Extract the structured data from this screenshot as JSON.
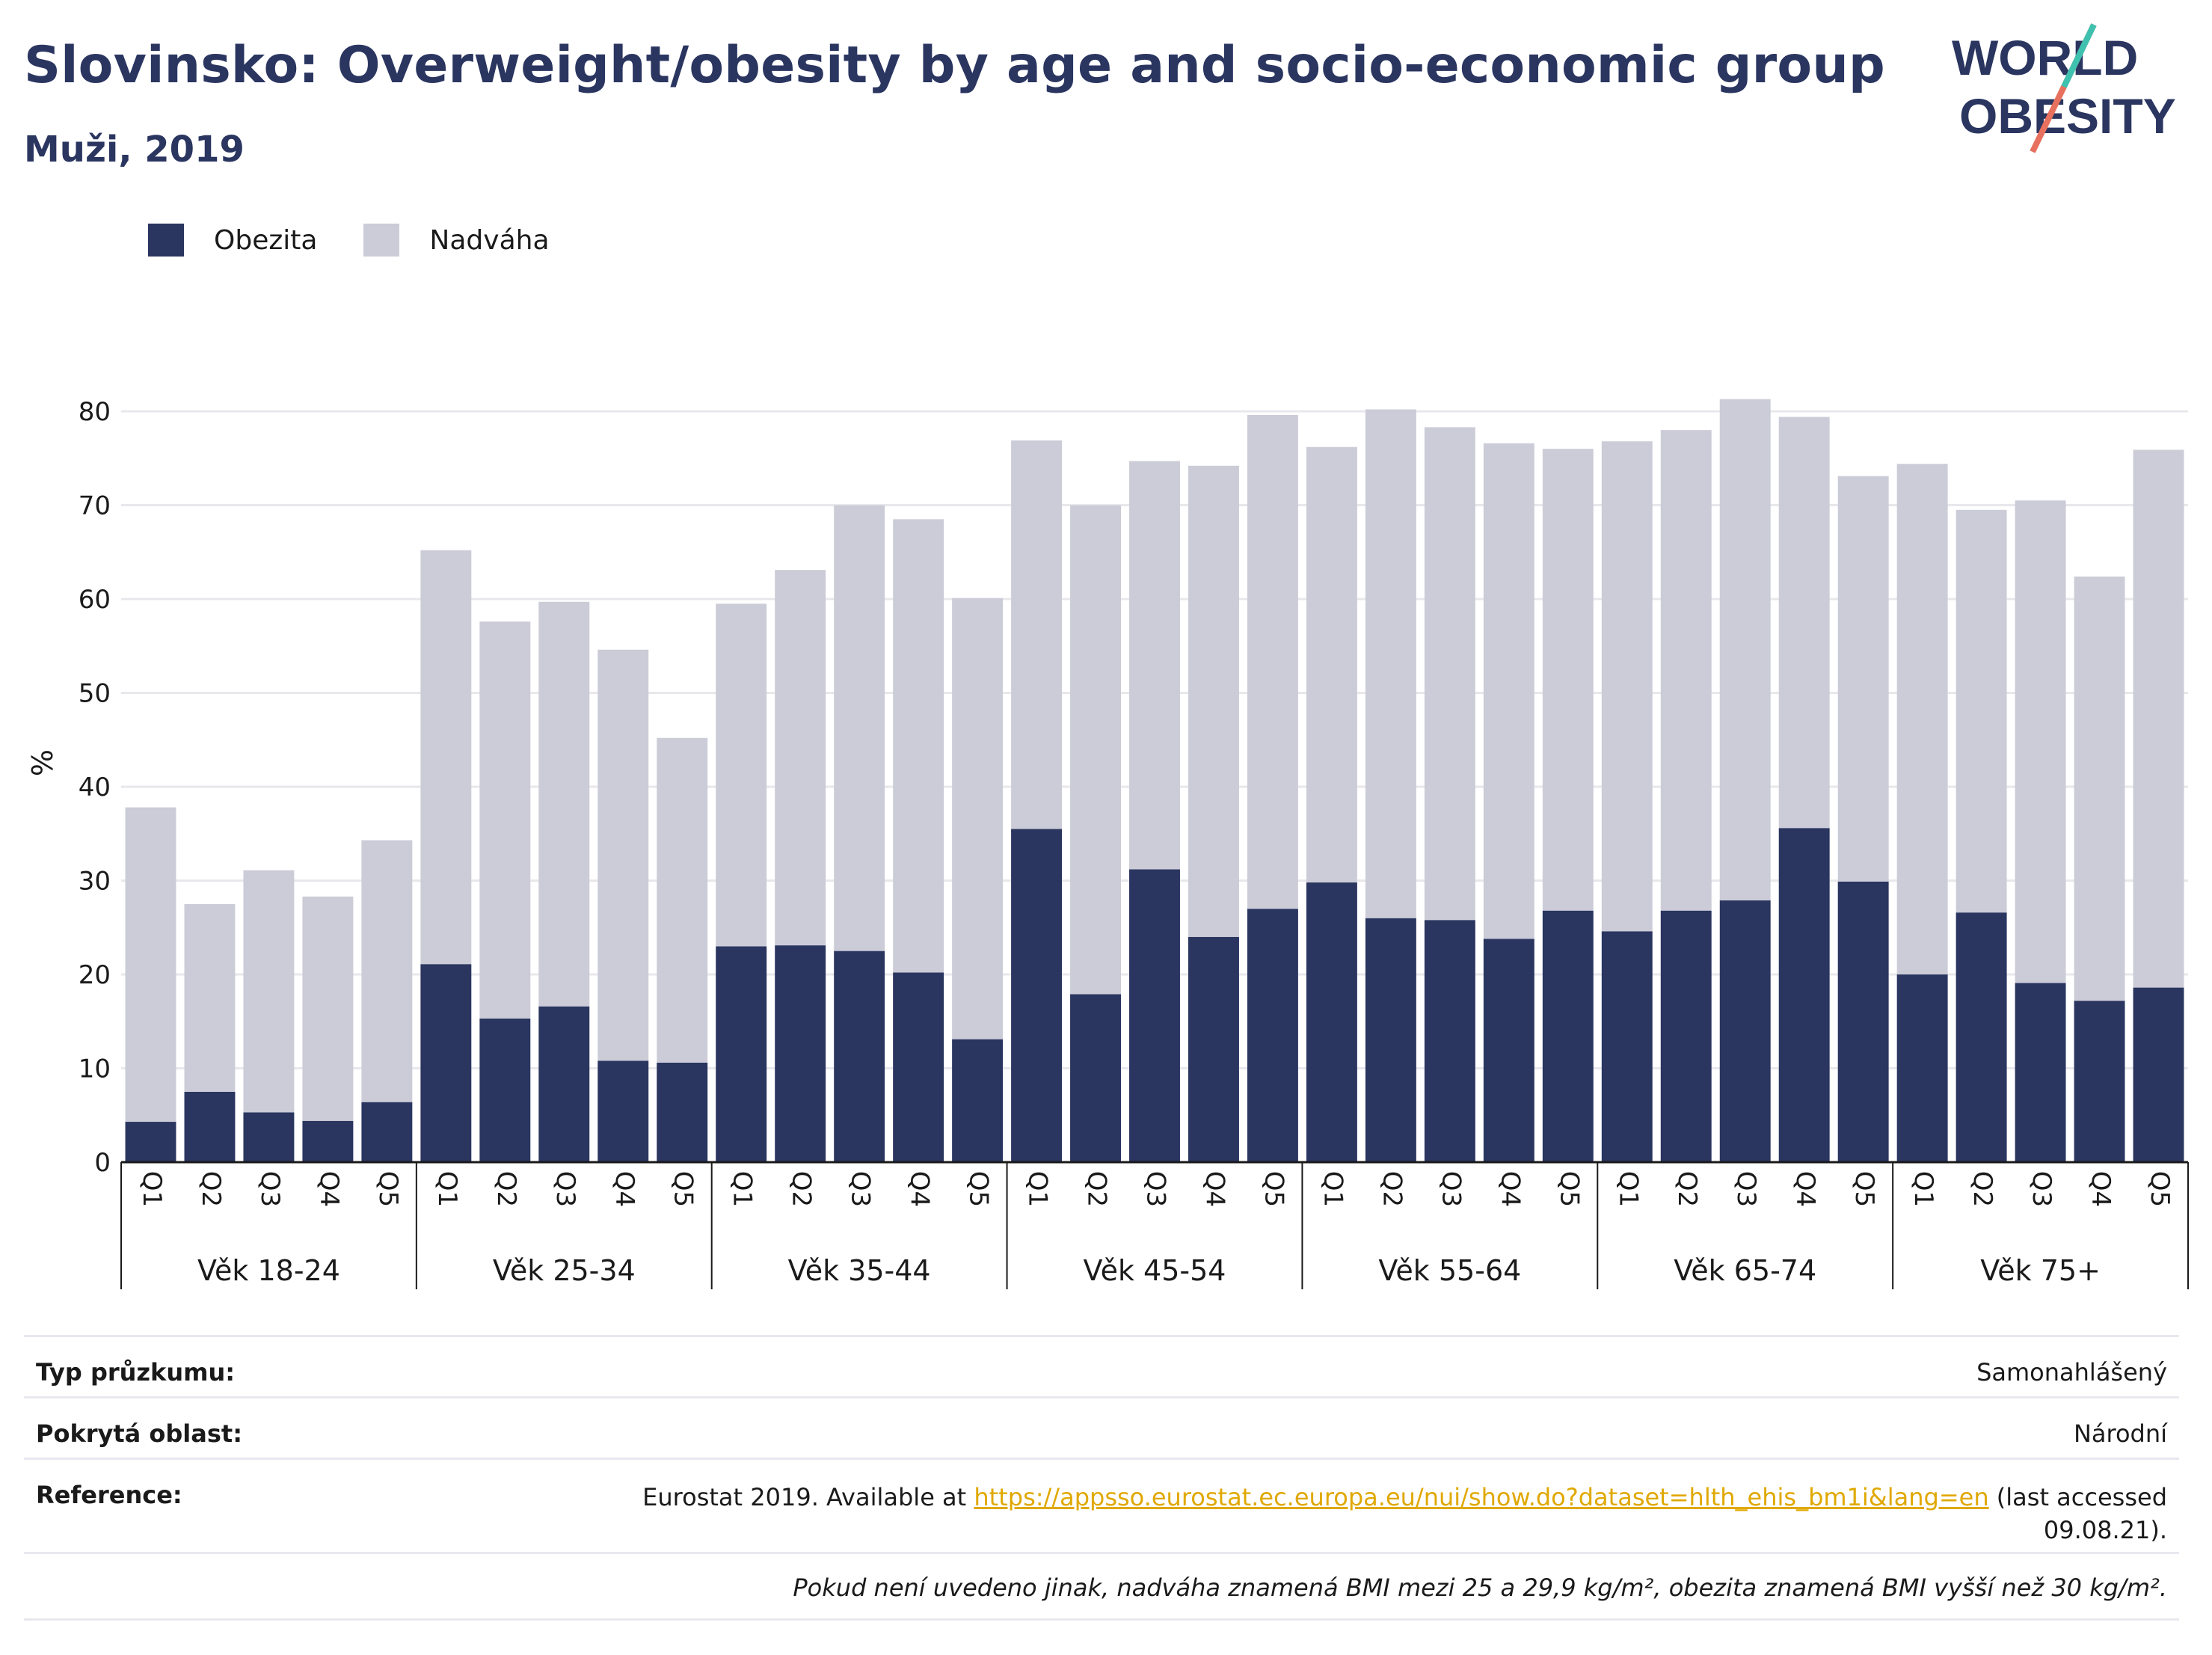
{
  "header": {
    "title": "Slovinsko: Overweight/obesity by age and socio-economic group",
    "subtitle": "Muži, 2019"
  },
  "logo": {
    "line1": "WORLD",
    "line2": "OBESITY"
  },
  "legend": {
    "items": [
      {
        "label": "Obezita",
        "color": "#2a3560"
      },
      {
        "label": "Nadváha",
        "color": "#cbccd7"
      }
    ]
  },
  "chart_data": {
    "type": "bar",
    "stacked": true,
    "ylabel": "%",
    "ylim": [
      0,
      80
    ],
    "yticks": [
      0,
      10,
      20,
      30,
      40,
      50,
      60,
      70,
      80
    ],
    "grid": true,
    "groups": [
      "Věk 18-24",
      "Věk 25-34",
      "Věk 35-44",
      "Věk 45-54",
      "Věk 55-64",
      "Věk 65-74",
      "Věk 75+"
    ],
    "categories": [
      "Q1",
      "Q2",
      "Q3",
      "Q4",
      "Q5"
    ],
    "series": [
      {
        "name": "Obezita",
        "color": "#2a3560",
        "values": [
          [
            4.3,
            7.5,
            5.3,
            4.4,
            6.4
          ],
          [
            21.1,
            15.3,
            16.6,
            10.8,
            10.6
          ],
          [
            23.0,
            23.1,
            22.5,
            20.2,
            13.1
          ],
          [
            35.5,
            17.9,
            31.2,
            24.0,
            27.0
          ],
          [
            29.8,
            26.0,
            25.8,
            23.8,
            26.8
          ],
          [
            24.6,
            26.8,
            27.9,
            35.6,
            29.9
          ],
          [
            20.0,
            26.6,
            19.1,
            17.2,
            18.6
          ]
        ]
      },
      {
        "name": "Nadváha",
        "color": "#cbccd7",
        "values": [
          [
            33.5,
            20.0,
            25.8,
            23.9,
            27.9
          ],
          [
            44.1,
            42.3,
            43.1,
            43.8,
            34.6
          ],
          [
            36.5,
            40.0,
            47.5,
            48.3,
            47.0
          ],
          [
            41.4,
            52.1,
            43.5,
            50.2,
            52.6
          ],
          [
            46.4,
            54.2,
            52.5,
            52.8,
            49.2
          ],
          [
            52.2,
            51.2,
            53.4,
            43.8,
            43.2
          ],
          [
            54.4,
            42.9,
            51.4,
            45.2,
            57.3
          ]
        ]
      }
    ]
  },
  "info": {
    "survey_type_label": "Typ průzkumu:",
    "survey_type_value": "Samonahlášený",
    "coverage_label": "Pokrytá oblast:",
    "coverage_value": "Národní",
    "reference_label": "Reference:",
    "reference_prefix": "Eurostat 2019. Available at ",
    "reference_link": "https://appsso.eurostat.ec.europa.eu/nui/show.do?dataset=hlth_ehis_bm1i&lang=en",
    "reference_suffix": " (last accessed",
    "reference_date": "09.08.21).",
    "note": "Pokud není uvedeno jinak, nadváha znamená BMI mezi 25 a 29,9 kg/m², obezita znamená BMI vyšší než 30 kg/m²."
  }
}
